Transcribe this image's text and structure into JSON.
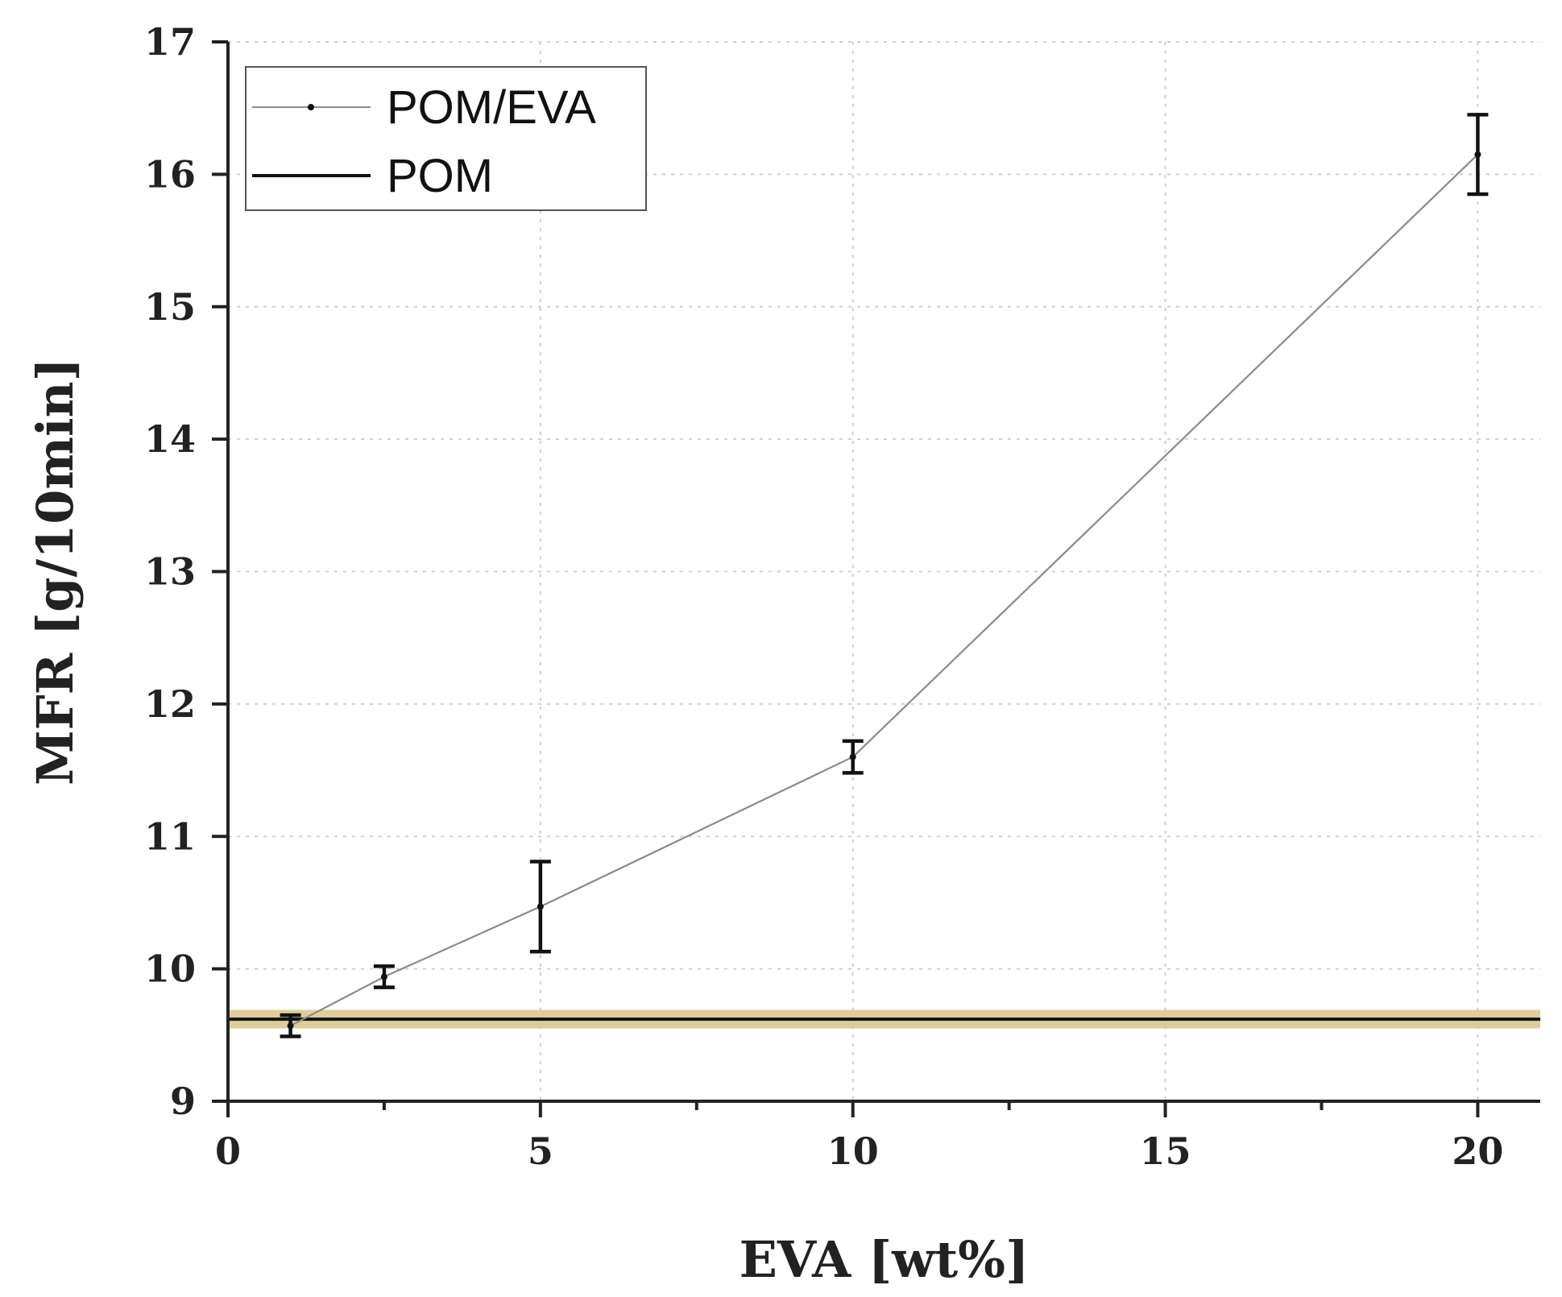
{
  "chart_data": {
    "type": "line",
    "title": "",
    "xlabel": "EVA [wt%]",
    "ylabel": "MFR [g/10min]",
    "xlim": [
      0,
      21
    ],
    "ylim": [
      9,
      17
    ],
    "x_ticks": [
      0,
      5,
      10,
      15,
      20
    ],
    "x_minor_ticks": [
      2.5,
      7.5,
      12.5,
      17.5
    ],
    "y_ticks": [
      9,
      10,
      11,
      12,
      13,
      14,
      15,
      16,
      17
    ],
    "grid": true,
    "legend_position": "top-left",
    "series": [
      {
        "name": "POM/EVA",
        "color": "#8a8a8a",
        "points": [
          {
            "x": 1,
            "y": 9.57,
            "err": 0.08
          },
          {
            "x": 2.5,
            "y": 9.94,
            "err": 0.08
          },
          {
            "x": 5,
            "y": 10.47,
            "err": 0.34
          },
          {
            "x": 10,
            "y": 11.6,
            "err": 0.12
          },
          {
            "x": 20,
            "y": 16.15,
            "err": 0.3
          }
        ]
      },
      {
        "name": "POM",
        "type": "hline",
        "y": 9.62,
        "band": [
          9.55,
          9.69
        ],
        "color": "#111111",
        "band_color": "#d9c58a"
      }
    ]
  }
}
